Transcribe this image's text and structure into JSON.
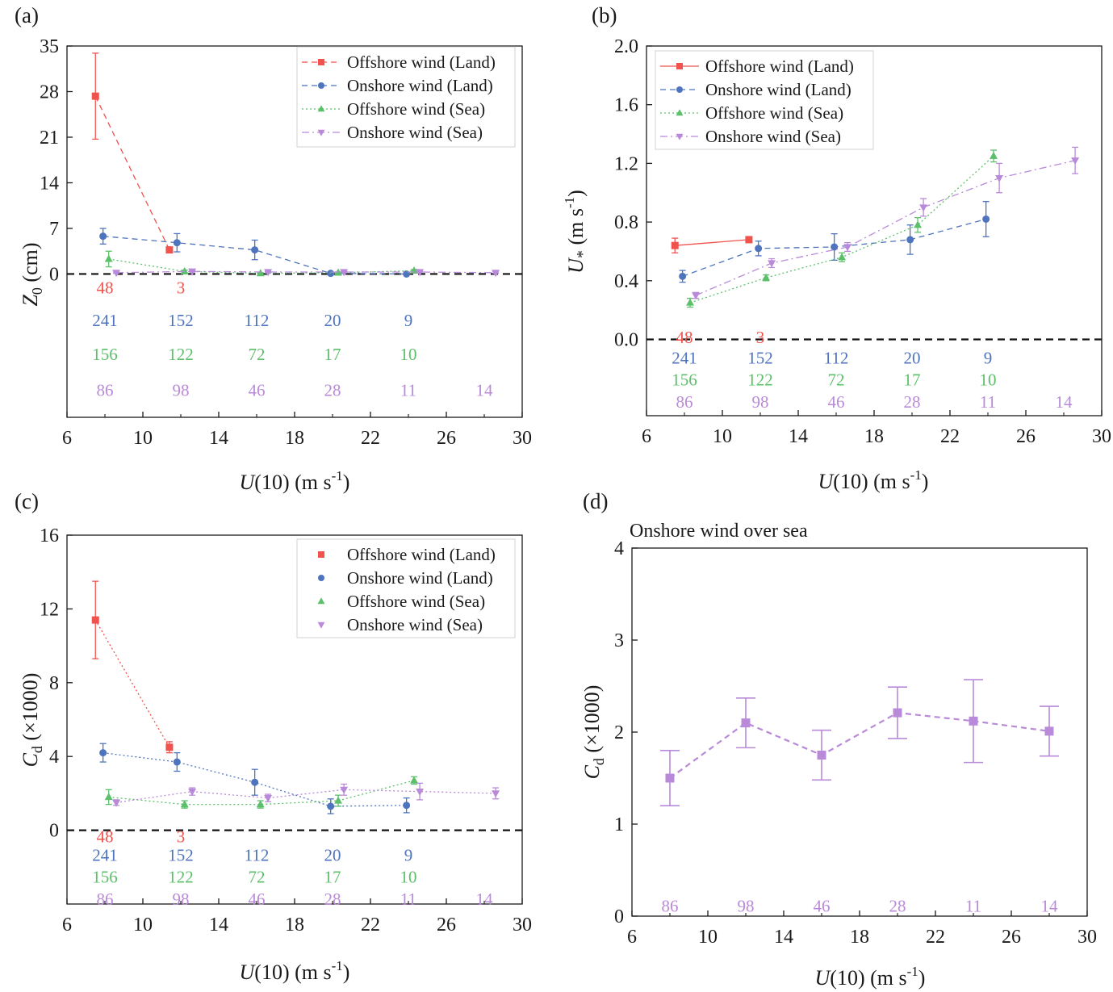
{
  "figure": {
    "colors": {
      "offshore_land": "#f0524d",
      "onshore_land": "#4f74be",
      "offshore_sea": "#5cc06a",
      "onshore_sea": "#b98ad9",
      "axis": "#1a1a1a"
    },
    "xlabel": "U(10) (m s-1)"
  },
  "chart_data": [
    {
      "id": "a",
      "type": "scatter",
      "panel_label": "(a)",
      "title": "",
      "ylabel": "Z0 (cm)",
      "xlabel": "U(10) (m s-1)",
      "xlim": [
        6,
        30
      ],
      "ylim": [
        -22,
        35
      ],
      "xticks": [
        6,
        10,
        14,
        18,
        22,
        26,
        30
      ],
      "yticks": [
        0,
        7,
        14,
        21,
        28,
        35
      ],
      "zero_line": true,
      "legend": {
        "position": "top-right",
        "entries": [
          "Offshore wind (Land)",
          "Onshore wind (Land)",
          "Offshore wind (Sea)",
          "Onshore wind (Sea)"
        ]
      },
      "series": [
        {
          "name": "Offshore wind (Land)",
          "key": "offshore_land",
          "marker": "square",
          "line": "dashed",
          "x": [
            7.5,
            11.4
          ],
          "y": [
            27.3,
            3.7
          ],
          "err": [
            6.6,
            0.4
          ]
        },
        {
          "name": "Onshore wind (Land)",
          "key": "onshore_land",
          "marker": "circle",
          "line": "dashed",
          "x": [
            7.9,
            11.8,
            15.9,
            19.9,
            23.9
          ],
          "y": [
            5.8,
            4.8,
            3.7,
            0.1,
            0.0
          ],
          "err": [
            1.2,
            1.4,
            1.5,
            0.1,
            0.1
          ]
        },
        {
          "name": "Offshore wind (Sea)",
          "key": "offshore_sea",
          "marker": "triangle-up",
          "line": "dotted",
          "x": [
            8.2,
            12.2,
            16.2,
            20.3,
            24.3
          ],
          "y": [
            2.3,
            0.4,
            0.1,
            0.2,
            0.5
          ],
          "err": [
            1.2,
            0.2,
            0.1,
            0.1,
            0.2
          ]
        },
        {
          "name": "Onshore wind (Sea)",
          "key": "onshore_sea",
          "marker": "triangle-down",
          "line": "dashdot",
          "x": [
            8.6,
            12.6,
            16.6,
            20.6,
            24.6,
            28.6
          ],
          "y": [
            0.2,
            0.4,
            0.3,
            0.3,
            0.3,
            0.2
          ],
          "err": [
            0.1,
            0.1,
            0.1,
            0.1,
            0.1,
            0.1
          ]
        }
      ],
      "counts": [
        {
          "key": "offshore_land",
          "y": -2,
          "x": [
            8,
            12
          ],
          "labels": [
            "48",
            "3"
          ]
        },
        {
          "key": "onshore_land",
          "y": -7,
          "x": [
            8,
            12,
            16,
            20,
            24
          ],
          "labels": [
            "241",
            "152",
            "112",
            "20",
            "9"
          ]
        },
        {
          "key": "offshore_sea",
          "y": -12.2,
          "x": [
            8,
            12,
            16,
            20,
            24
          ],
          "labels": [
            "156",
            "122",
            "72",
            "17",
            "10"
          ]
        },
        {
          "key": "onshore_sea",
          "y": -17.7,
          "x": [
            8,
            12,
            16,
            20,
            24,
            28
          ],
          "labels": [
            "86",
            "98",
            "46",
            "28",
            "11",
            "14"
          ]
        }
      ]
    },
    {
      "id": "b",
      "type": "line",
      "panel_label": "(b)",
      "title": "",
      "ylabel": "U* (m s-1)",
      "xlabel": "U(10) (m s-1)",
      "xlim": [
        6,
        30
      ],
      "ylim": [
        -0.52,
        2.0
      ],
      "xticks": [
        6,
        10,
        14,
        18,
        22,
        26,
        30
      ],
      "yticks": [
        0.0,
        0.4,
        0.8,
        1.2,
        1.6,
        2.0
      ],
      "yticklabels": [
        "0.0",
        "0.4",
        "0.8",
        "1.2",
        "1.6",
        "2.0"
      ],
      "zero_line": true,
      "legend": {
        "position": "top-left",
        "entries": [
          "Offshore wind (Land)",
          "Onshore wind (Land)",
          "Offshore wind (Sea)",
          "Onshore wind (Sea)"
        ]
      },
      "series": [
        {
          "name": "Offshore wind (Land)",
          "key": "offshore_land",
          "marker": "square",
          "line": "solid",
          "x": [
            7.5,
            11.4
          ],
          "y": [
            0.64,
            0.68
          ],
          "err": [
            0.05,
            0.02
          ]
        },
        {
          "name": "Onshore wind (Land)",
          "key": "onshore_land",
          "marker": "circle",
          "line": "dashed",
          "x": [
            7.9,
            11.9,
            15.9,
            19.9,
            23.9
          ],
          "y": [
            0.43,
            0.62,
            0.63,
            0.68,
            0.82
          ],
          "err": [
            0.04,
            0.05,
            0.09,
            0.1,
            0.12
          ]
        },
        {
          "name": "Offshore wind (Sea)",
          "key": "offshore_sea",
          "marker": "triangle-up",
          "line": "dotted",
          "x": [
            8.3,
            12.3,
            16.3,
            20.3,
            24.3
          ],
          "y": [
            0.25,
            0.42,
            0.56,
            0.78,
            1.25
          ],
          "err": [
            0.03,
            0.02,
            0.03,
            0.05,
            0.04
          ]
        },
        {
          "name": "Onshore wind (Sea)",
          "key": "onshore_sea",
          "marker": "triangle-down",
          "line": "dashdot",
          "x": [
            8.6,
            12.6,
            16.6,
            20.6,
            24.6,
            28.6
          ],
          "y": [
            0.3,
            0.52,
            0.63,
            0.9,
            1.1,
            1.22
          ],
          "err": [
            0.02,
            0.03,
            0.03,
            0.06,
            0.1,
            0.09
          ]
        }
      ],
      "counts": [
        {
          "key": "offshore_land",
          "y": 0.02,
          "x": [
            8,
            12
          ],
          "labels": [
            "48",
            "3"
          ]
        },
        {
          "key": "onshore_land",
          "y": -0.12,
          "x": [
            8,
            12,
            16,
            20,
            24
          ],
          "labels": [
            "241",
            "152",
            "112",
            "20",
            "9"
          ]
        },
        {
          "key": "offshore_sea",
          "y": -0.27,
          "x": [
            8,
            12,
            16,
            20,
            24
          ],
          "labels": [
            "156",
            "122",
            "72",
            "17",
            "10"
          ]
        },
        {
          "key": "onshore_sea",
          "y": -0.42,
          "x": [
            8,
            12,
            16,
            20,
            24,
            28
          ],
          "labels": [
            "86",
            "98",
            "46",
            "28",
            "11",
            "14"
          ]
        }
      ]
    },
    {
      "id": "c",
      "type": "scatter",
      "panel_label": "(c)",
      "title": "",
      "ylabel": "Cd (×1000)",
      "xlabel": "U(10) (m s-1)",
      "xlim": [
        6,
        30
      ],
      "ylim": [
        -4,
        16
      ],
      "xticks": [
        6,
        10,
        14,
        18,
        22,
        26,
        30
      ],
      "yticks": [
        0,
        4,
        8,
        12,
        16
      ],
      "zero_line": true,
      "legend": {
        "position": "top-right",
        "entries": [
          "Offshore wind (Land)",
          "Onshore wind (Land)",
          "Offshore wind (Sea)",
          "Onshore wind (Sea)"
        ]
      },
      "series": [
        {
          "name": "Offshore wind (Land)",
          "key": "offshore_land",
          "marker": "square",
          "line": "dotted",
          "x": [
            7.5,
            11.4
          ],
          "y": [
            11.4,
            4.5
          ],
          "err": [
            2.1,
            0.3
          ]
        },
        {
          "name": "Onshore wind (Land)",
          "key": "onshore_land",
          "marker": "circle",
          "line": "dotted",
          "x": [
            7.9,
            11.8,
            15.9,
            19.9,
            23.9
          ],
          "y": [
            4.2,
            3.7,
            2.6,
            1.3,
            1.35
          ],
          "err": [
            0.5,
            0.5,
            0.7,
            0.4,
            0.4
          ]
        },
        {
          "name": "Offshore wind (Sea)",
          "key": "offshore_sea",
          "marker": "triangle-up",
          "line": "dotted",
          "x": [
            8.2,
            12.2,
            16.2,
            20.3,
            24.3
          ],
          "y": [
            1.8,
            1.4,
            1.4,
            1.6,
            2.7
          ],
          "err": [
            0.4,
            0.2,
            0.2,
            0.3,
            0.2
          ]
        },
        {
          "name": "Onshore wind (Sea)",
          "key": "onshore_sea",
          "marker": "triangle-down",
          "line": "dotted",
          "x": [
            8.6,
            12.6,
            16.6,
            20.6,
            24.6,
            28.6
          ],
          "y": [
            1.5,
            2.1,
            1.75,
            2.2,
            2.1,
            2.0
          ],
          "err": [
            0.15,
            0.2,
            0.2,
            0.3,
            0.45,
            0.3
          ]
        }
      ],
      "counts": [
        {
          "key": "offshore_land",
          "y": -0.3,
          "x": [
            8,
            12
          ],
          "labels": [
            "48",
            "3"
          ]
        },
        {
          "key": "onshore_land",
          "y": -1.3,
          "x": [
            8,
            12,
            16,
            20,
            24
          ],
          "labels": [
            "241",
            "152",
            "112",
            "20",
            "9"
          ]
        },
        {
          "key": "offshore_sea",
          "y": -2.5,
          "x": [
            8,
            12,
            16,
            20,
            24
          ],
          "labels": [
            "156",
            "122",
            "72",
            "17",
            "10"
          ]
        },
        {
          "key": "onshore_sea",
          "y": -3.7,
          "x": [
            8,
            12,
            16,
            20,
            24,
            28
          ],
          "labels": [
            "86",
            "98",
            "46",
            "28",
            "11",
            "14"
          ]
        }
      ]
    },
    {
      "id": "d",
      "type": "line",
      "panel_label": "(d)",
      "title": "Onshore wind over sea",
      "ylabel": "Cd (×1000)",
      "xlabel": "U(10) (m s-1)",
      "xlim": [
        6,
        30
      ],
      "ylim": [
        0,
        4
      ],
      "xticks": [
        6,
        10,
        14,
        18,
        22,
        26,
        30
      ],
      "yticks": [
        0,
        1,
        2,
        3,
        4
      ],
      "zero_line": false,
      "series": [
        {
          "name": "",
          "key": "onshore_sea",
          "marker": "square",
          "line": "dashed",
          "x": [
            8,
            12,
            16,
            20,
            24,
            28
          ],
          "y": [
            1.5,
            2.1,
            1.75,
            2.21,
            2.12,
            2.01
          ],
          "err": [
            0.3,
            0.27,
            0.27,
            0.28,
            0.45,
            0.27
          ]
        }
      ],
      "counts": [
        {
          "key": "onshore_sea",
          "y": 0.12,
          "x": [
            8,
            12,
            16,
            20,
            24,
            28
          ],
          "labels": [
            "86",
            "98",
            "46",
            "28",
            "11",
            "14"
          ]
        }
      ]
    }
  ]
}
